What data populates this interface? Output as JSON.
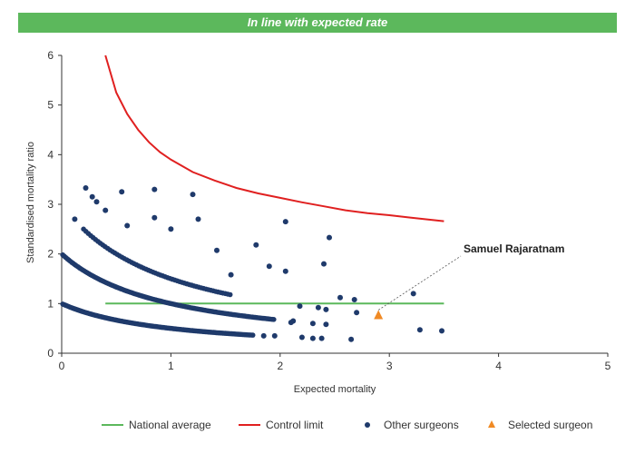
{
  "banner": {
    "text": "In line with expected rate",
    "color": "#5cb85c"
  },
  "chart_data": {
    "type": "scatter",
    "xlabel": "Expected mortality",
    "ylabel": "Standardised mortality ratio",
    "xlim": [
      0,
      5
    ],
    "ylim": [
      0,
      6
    ],
    "xticks": [
      "0",
      "1",
      "2",
      "3",
      "4",
      "5"
    ],
    "yticks": [
      "0",
      "1",
      "2",
      "3",
      "4",
      "5",
      "6"
    ],
    "grid": false,
    "legend_position": "bottom",
    "annotation": {
      "text": "Samuel Rajaratnam",
      "x": 2.9,
      "y": 0.76
    },
    "series": [
      {
        "name": "National average",
        "kind": "line",
        "color": "#5cb85c",
        "points": [
          [
            0.4,
            1.0
          ],
          [
            3.5,
            1.0
          ]
        ]
      },
      {
        "name": "Control limit",
        "kind": "line",
        "color": "#e02020",
        "points": [
          [
            0.4,
            6.0
          ],
          [
            0.5,
            5.25
          ],
          [
            0.6,
            4.82
          ],
          [
            0.7,
            4.5
          ],
          [
            0.8,
            4.25
          ],
          [
            0.9,
            4.05
          ],
          [
            1.0,
            3.9
          ],
          [
            1.2,
            3.65
          ],
          [
            1.4,
            3.48
          ],
          [
            1.6,
            3.33
          ],
          [
            1.8,
            3.22
          ],
          [
            2.0,
            3.13
          ],
          [
            2.2,
            3.04
          ],
          [
            2.4,
            2.96
          ],
          [
            2.6,
            2.88
          ],
          [
            2.8,
            2.82
          ],
          [
            3.0,
            2.78
          ],
          [
            3.2,
            2.73
          ],
          [
            3.5,
            2.66
          ]
        ]
      },
      {
        "name": "Other surgeons",
        "kind": "scatter",
        "color": "#1f3a6b",
        "bands": [
          {
            "k": 0,
            "from": 0.01,
            "to": 1.75,
            "step": 0.012
          },
          {
            "k": 1,
            "from": 0.01,
            "to": 1.95,
            "step": 0.014
          },
          {
            "k": 2,
            "from": 0.2,
            "to": 1.55,
            "step": 0.022
          }
        ],
        "points": [
          [
            0.12,
            2.7
          ],
          [
            0.22,
            3.33
          ],
          [
            0.28,
            3.15
          ],
          [
            0.32,
            3.05
          ],
          [
            0.4,
            2.88
          ],
          [
            0.55,
            3.25
          ],
          [
            0.6,
            2.57
          ],
          [
            0.85,
            3.3
          ],
          [
            0.85,
            2.73
          ],
          [
            1.0,
            2.5
          ],
          [
            1.2,
            3.2
          ],
          [
            1.25,
            2.7
          ],
          [
            1.42,
            2.07
          ],
          [
            1.55,
            1.58
          ],
          [
            1.78,
            2.18
          ],
          [
            1.9,
            1.75
          ],
          [
            2.05,
            2.65
          ],
          [
            2.05,
            1.65
          ],
          [
            2.4,
            1.8
          ],
          [
            2.45,
            2.33
          ],
          [
            2.55,
            1.12
          ],
          [
            2.68,
            1.08
          ],
          [
            2.7,
            0.82
          ],
          [
            2.42,
            0.88
          ],
          [
            2.42,
            0.58
          ],
          [
            2.3,
            0.6
          ],
          [
            2.35,
            0.92
          ],
          [
            2.3,
            0.3
          ],
          [
            2.38,
            0.3
          ],
          [
            2.2,
            0.32
          ],
          [
            2.18,
            0.95
          ],
          [
            2.12,
            0.65
          ],
          [
            2.1,
            0.62
          ],
          [
            1.95,
            0.35
          ],
          [
            1.85,
            0.35
          ],
          [
            2.65,
            0.28
          ],
          [
            3.22,
            1.2
          ],
          [
            3.28,
            0.47
          ],
          [
            3.48,
            0.45
          ]
        ]
      },
      {
        "name": "Selected surgeon",
        "kind": "scatter",
        "color": "#f08a24",
        "points": [
          [
            2.9,
            0.76
          ]
        ]
      }
    ]
  }
}
